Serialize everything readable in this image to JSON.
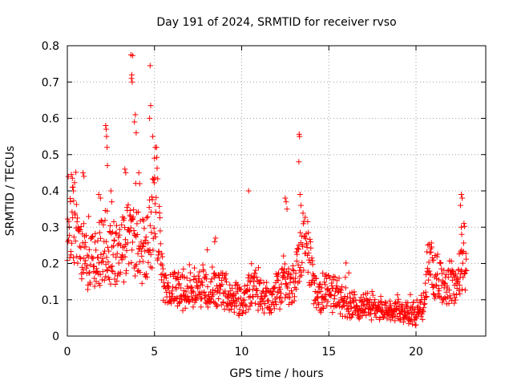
{
  "chart_data": {
    "type": "scatter",
    "title": "Day 191 of 2024, SRMTID for receiver rvso",
    "xlabel": "GPS time / hours",
    "ylabel": "SRMTID / TECUs",
    "xlim": [
      0,
      24
    ],
    "ylim": [
      0,
      0.8
    ],
    "xticks": [
      0,
      5,
      10,
      15,
      20
    ],
    "xtick_labels": [
      "0",
      "5",
      "10",
      "15",
      "20"
    ],
    "yticks": [
      0,
      0.1,
      0.2,
      0.3,
      0.4,
      0.5,
      0.6,
      0.7,
      0.8
    ],
    "ytick_labels": [
      "0",
      "0.1",
      "0.2",
      "0.3",
      "0.4",
      "0.5",
      "0.6",
      "0.7",
      "0.8"
    ],
    "grid": true,
    "marker": "+",
    "series": [
      {
        "name": "SRMTID",
        "color": "#ff0000",
        "anchors": [
          [
            0.0,
            0.3
          ],
          [
            0.2,
            0.34
          ],
          [
            0.4,
            0.31
          ],
          [
            0.6,
            0.26
          ],
          [
            0.8,
            0.24
          ],
          [
            1.0,
            0.22
          ],
          [
            1.3,
            0.2
          ],
          [
            1.6,
            0.21
          ],
          [
            1.9,
            0.23
          ],
          [
            2.2,
            0.26
          ],
          [
            2.5,
            0.24
          ],
          [
            2.8,
            0.22
          ],
          [
            3.1,
            0.24
          ],
          [
            3.4,
            0.26
          ],
          [
            3.7,
            0.27
          ],
          [
            4.0,
            0.25
          ],
          [
            4.3,
            0.23
          ],
          [
            4.6,
            0.26
          ],
          [
            4.9,
            0.32
          ],
          [
            5.1,
            0.38
          ],
          [
            5.3,
            0.26
          ],
          [
            5.5,
            0.13
          ],
          [
            6.0,
            0.12
          ],
          [
            6.5,
            0.13
          ],
          [
            7.0,
            0.14
          ],
          [
            7.5,
            0.13
          ],
          [
            8.0,
            0.14
          ],
          [
            8.5,
            0.13
          ],
          [
            9.0,
            0.12
          ],
          [
            9.5,
            0.11
          ],
          [
            10.0,
            0.09
          ],
          [
            10.3,
            0.1
          ],
          [
            10.6,
            0.16
          ],
          [
            10.9,
            0.12
          ],
          [
            11.2,
            0.11
          ],
          [
            11.5,
            0.1
          ],
          [
            11.8,
            0.11
          ],
          [
            12.1,
            0.13
          ],
          [
            12.5,
            0.16
          ],
          [
            12.8,
            0.14
          ],
          [
            13.1,
            0.17
          ],
          [
            13.4,
            0.24
          ],
          [
            13.7,
            0.26
          ],
          [
            14.0,
            0.18
          ],
          [
            14.3,
            0.12
          ],
          [
            14.6,
            0.11
          ],
          [
            15.0,
            0.13
          ],
          [
            15.5,
            0.11
          ],
          [
            16.0,
            0.09
          ],
          [
            16.5,
            0.08
          ],
          [
            17.0,
            0.09
          ],
          [
            17.5,
            0.08
          ],
          [
            18.0,
            0.07
          ],
          [
            18.5,
            0.06
          ],
          [
            19.0,
            0.07
          ],
          [
            19.5,
            0.06
          ],
          [
            20.0,
            0.06
          ],
          [
            20.4,
            0.09
          ],
          [
            20.7,
            0.19
          ],
          [
            21.0,
            0.17
          ],
          [
            21.5,
            0.14
          ],
          [
            22.0,
            0.14
          ],
          [
            22.4,
            0.15
          ],
          [
            22.7,
            0.19
          ],
          [
            22.9,
            0.16
          ]
        ],
        "extra_points": [
          [
            3.65,
            0.775
          ],
          [
            3.75,
            0.773
          ],
          [
            3.7,
            0.72
          ],
          [
            3.72,
            0.7
          ],
          [
            3.68,
            0.71
          ],
          [
            4.75,
            0.745
          ],
          [
            4.78,
            0.635
          ],
          [
            4.72,
            0.6
          ],
          [
            3.9,
            0.61
          ],
          [
            3.95,
            0.56
          ],
          [
            3.85,
            0.59
          ],
          [
            2.2,
            0.58
          ],
          [
            2.23,
            0.57
          ],
          [
            2.25,
            0.55
          ],
          [
            2.28,
            0.52
          ],
          [
            2.3,
            0.47
          ],
          [
            4.9,
            0.55
          ],
          [
            5.05,
            0.52
          ],
          [
            5.0,
            0.49
          ],
          [
            3.3,
            0.46
          ],
          [
            3.35,
            0.45
          ],
          [
            0.9,
            0.45
          ],
          [
            0.95,
            0.44
          ],
          [
            13.3,
            0.556
          ],
          [
            13.32,
            0.55
          ],
          [
            13.28,
            0.48
          ],
          [
            13.35,
            0.39
          ],
          [
            13.4,
            0.36
          ],
          [
            12.5,
            0.38
          ],
          [
            12.55,
            0.37
          ],
          [
            12.6,
            0.35
          ],
          [
            10.4,
            0.4
          ],
          [
            22.6,
            0.39
          ],
          [
            22.65,
            0.38
          ],
          [
            22.55,
            0.36
          ],
          [
            22.6,
            0.3
          ],
          [
            22.62,
            0.28
          ],
          [
            8.5,
            0.27
          ],
          [
            8.45,
            0.26
          ],
          [
            0.3,
            0.41
          ],
          [
            0.35,
            0.4
          ],
          [
            1.8,
            0.39
          ],
          [
            1.9,
            0.38
          ],
          [
            2.5,
            0.4
          ],
          [
            2.55,
            0.37
          ],
          [
            4.1,
            0.45
          ],
          [
            4.15,
            0.42
          ]
        ]
      }
    ]
  }
}
